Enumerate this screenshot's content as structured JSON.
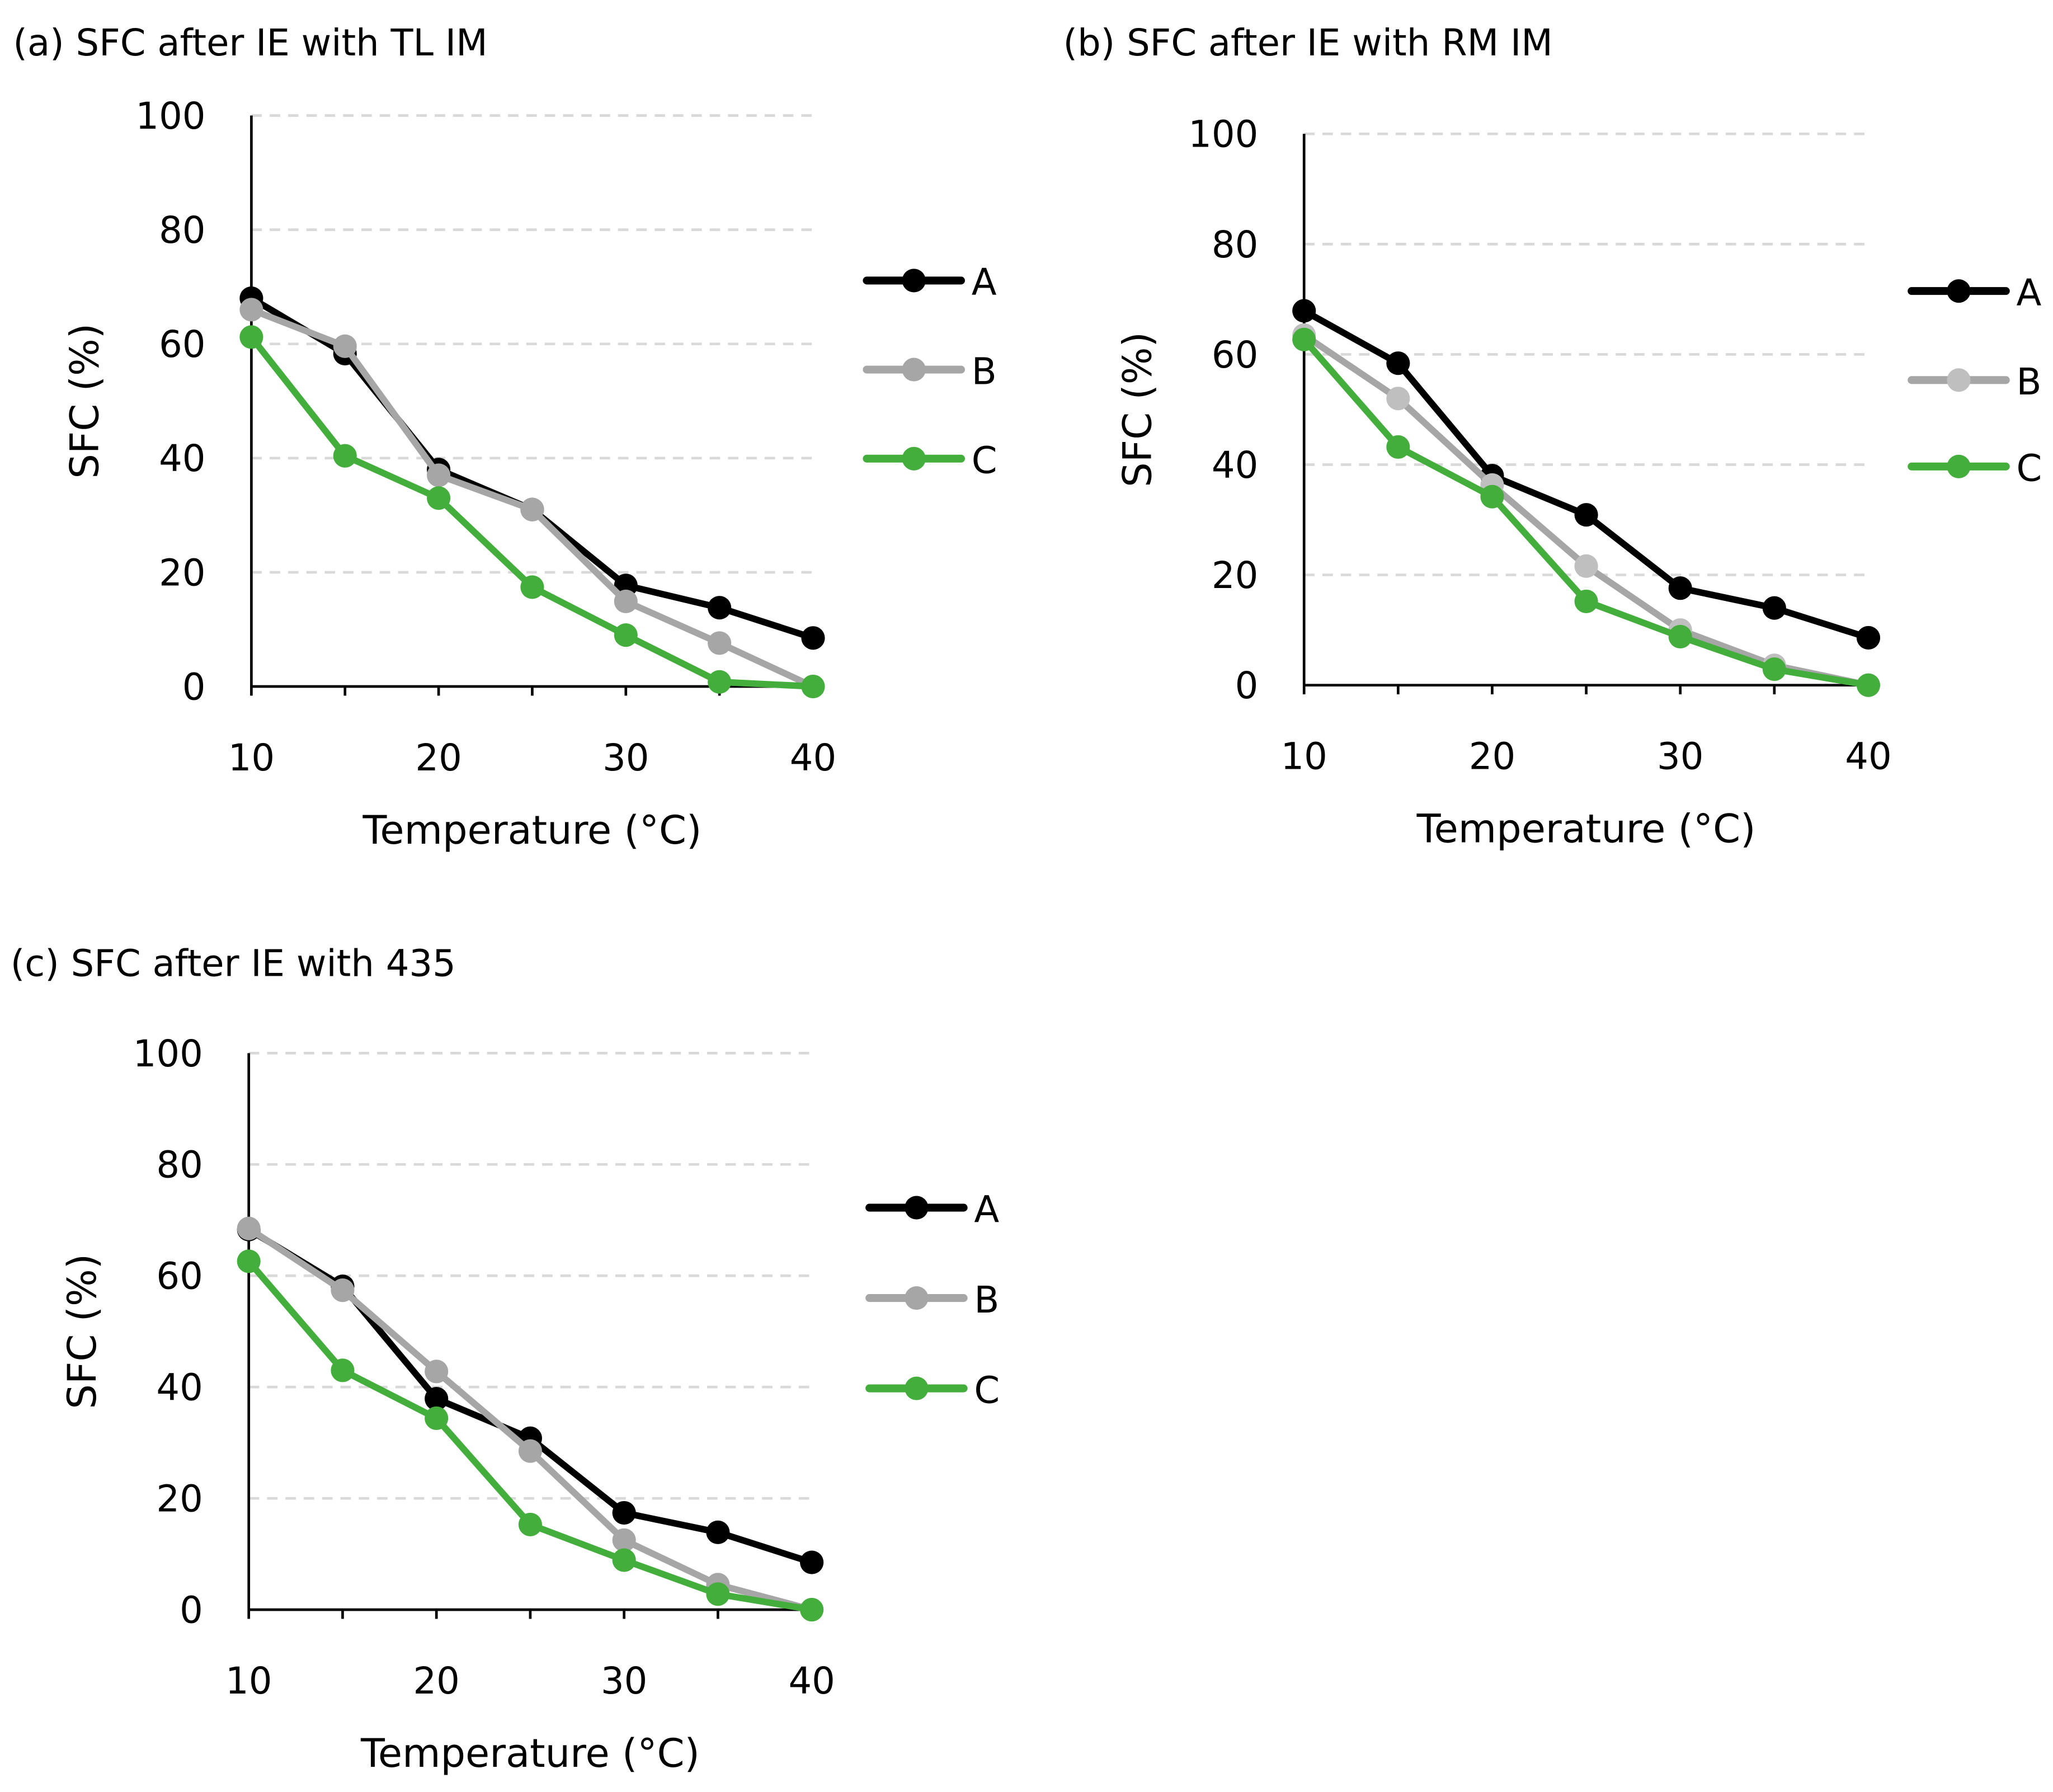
{
  "chart_data": [
    {
      "type": "line",
      "title": "(a) SFC after IE with TL IM",
      "xlabel": "Temperature (°C)",
      "ylabel": "SFC (%)",
      "xlim": [
        10,
        40
      ],
      "ylim": [
        0,
        100
      ],
      "xticks": [
        10,
        20,
        30,
        40
      ],
      "yticks": [
        0,
        20,
        40,
        60,
        80,
        100
      ],
      "grid": "horizontal dashed",
      "legend": "right",
      "x": [
        10,
        15,
        20,
        25,
        30,
        35,
        40
      ],
      "series": [
        {
          "name": "A",
          "line_color": "#000000",
          "marker_color": "#000000",
          "values": [
            68,
            58.3,
            38,
            31,
            17.7,
            13.8,
            8.5
          ]
        },
        {
          "name": "B",
          "line_color": "#a6a6a6",
          "marker_color": "#a6a6a6",
          "values": [
            66,
            59.6,
            37,
            31,
            14.9,
            7.6,
            0
          ]
        },
        {
          "name": "C",
          "line_color": "#44ae3c",
          "marker_color": "#44ae3c",
          "values": [
            61.2,
            40.4,
            33,
            17.4,
            9,
            0.8,
            0
          ]
        }
      ]
    },
    {
      "type": "line",
      "title": "(b) SFC after IE with RM IM",
      "xlabel": "Temperature (°C)",
      "ylabel": "SFC (%)",
      "xlim": [
        10,
        40
      ],
      "ylim": [
        0,
        100
      ],
      "xticks": [
        10,
        20,
        30,
        40
      ],
      "yticks": [
        0,
        20,
        40,
        60,
        80,
        100
      ],
      "grid": "horizontal dashed",
      "legend": "right",
      "x": [
        10,
        15,
        20,
        25,
        30,
        35,
        40
      ],
      "series": [
        {
          "name": "A",
          "line_color": "#000000",
          "marker_color": "#000000",
          "values": [
            67.9,
            58.4,
            38,
            30.9,
            17.6,
            14,
            8.6
          ]
        },
        {
          "name": "B",
          "line_color": "#a6a6a6",
          "marker_color": "#bfbfbf",
          "values": [
            63.5,
            52,
            36.3,
            21.6,
            10,
            3.6,
            0
          ]
        },
        {
          "name": "C",
          "line_color": "#44ae3c",
          "marker_color": "#44ae3c",
          "values": [
            62.7,
            43.2,
            34.2,
            15.2,
            8.8,
            2.9,
            0
          ]
        }
      ]
    },
    {
      "type": "line",
      "title": "(c) SFC after IE with 435",
      "xlabel": "Temperature (°C)",
      "ylabel": "SFC (%)",
      "xlim": [
        10,
        40
      ],
      "ylim": [
        0,
        100
      ],
      "xticks": [
        10,
        20,
        30,
        40
      ],
      "yticks": [
        0,
        20,
        40,
        60,
        80,
        100
      ],
      "grid": "horizontal dashed",
      "legend": "right",
      "x": [
        10,
        15,
        20,
        25,
        30,
        35,
        40
      ],
      "series": [
        {
          "name": "A",
          "line_color": "#000000",
          "marker_color": "#000000",
          "values": [
            68.3,
            58.1,
            37.9,
            30.8,
            17.4,
            13.9,
            8.5
          ]
        },
        {
          "name": "B",
          "line_color": "#a6a6a6",
          "marker_color": "#a6a6a6",
          "values": [
            68.5,
            57.4,
            42.8,
            28.5,
            12.5,
            4.5,
            0
          ]
        },
        {
          "name": "C",
          "line_color": "#44ae3c",
          "marker_color": "#44ae3c",
          "values": [
            62.6,
            43,
            34.4,
            15.3,
            8.9,
            2.8,
            0
          ]
        }
      ]
    }
  ]
}
